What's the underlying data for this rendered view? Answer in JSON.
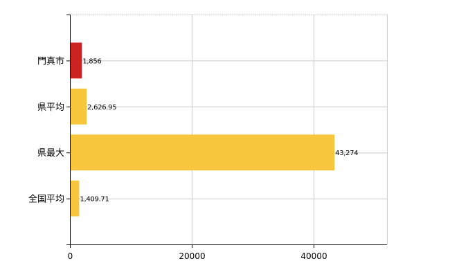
{
  "chart_data": {
    "type": "bar",
    "orientation": "horizontal",
    "categories": [
      "門真市",
      "県平均",
      "県最大",
      "全国平均"
    ],
    "values": [
      1856,
      2626.95,
      43274,
      1409.71
    ],
    "value_labels": [
      "1,856",
      "2,626.95",
      "43,274",
      "1,409.71"
    ],
    "bar_colors": [
      "#cc2222",
      "#f7c63c",
      "#f7c63c",
      "#f7c63c"
    ],
    "xlim": [
      0,
      52000
    ],
    "x_ticks": [
      0,
      20000,
      40000
    ],
    "x_tick_labels": [
      "0",
      "20000",
      "40000"
    ],
    "grid": true,
    "grid_color": "#cccccc",
    "title": "",
    "xlabel": "",
    "ylabel": ""
  }
}
